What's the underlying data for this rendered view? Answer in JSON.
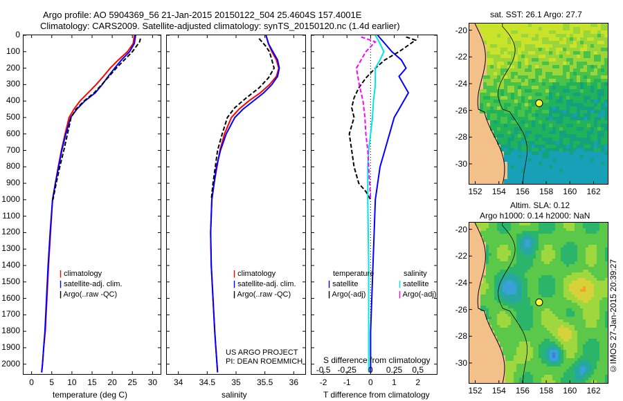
{
  "header": {
    "line1": "Argo profile: AO 5904369_56 21-Jan-2015 20150122_504 25.4604S 157.4001E",
    "line2": "Climatology: CARS2009. Satellite-adjusted climatology: synTS_20150120.nc (1.4d earlier)"
  },
  "colors": {
    "climatology": "#ff0000",
    "satellite": "#0000ff",
    "argo": "#000000",
    "salinity_sat": "#00e5e5",
    "salinity_argo": "#ff00ff"
  },
  "depth_axis": {
    "ticks": [
      "0",
      "100",
      "200",
      "300",
      "400",
      "500",
      "600",
      "700",
      "800",
      "900",
      "1000",
      "1100",
      "1200",
      "1300",
      "1400",
      "1500",
      "1600",
      "1700",
      "1800",
      "1900",
      "2000"
    ]
  },
  "chart_data": [
    {
      "type": "line",
      "name": "temperature-profile",
      "xlabel": "temperature (deg C)",
      "xticks": [
        "0",
        "5",
        "10",
        "15",
        "20",
        "25",
        "30"
      ],
      "xlim": [
        -2,
        32
      ],
      "ylim": [
        0,
        2060
      ],
      "series": [
        {
          "name": "climatology",
          "x": [
            25.5,
            25.2,
            23.8,
            21.5,
            19.5,
            17.8,
            16.0,
            14.0,
            12.0,
            10.5,
            9.3,
            8.3,
            7.4,
            6.6,
            5.9,
            5.2,
            4.7,
            4.2,
            3.8,
            3.4,
            3.0,
            2.7,
            2.5
          ],
          "depth": [
            0,
            50,
            100,
            150,
            200,
            250,
            300,
            350,
            400,
            450,
            500,
            600,
            700,
            800,
            900,
            1000,
            1200,
            1400,
            1600,
            1800,
            1900,
            2000,
            2050
          ]
        },
        {
          "name": "satellite-adj. clim.",
          "x": [
            25.8,
            25.5,
            24.3,
            22.3,
            20.6,
            19.0,
            17.5,
            15.8,
            13.2,
            11.2,
            9.7,
            8.5,
            7.5,
            6.7,
            5.9,
            5.2,
            4.6,
            4.1,
            3.7,
            3.3,
            3.0,
            2.7,
            2.5
          ],
          "depth": [
            0,
            50,
            100,
            150,
            200,
            250,
            300,
            350,
            400,
            450,
            500,
            600,
            700,
            800,
            900,
            1000,
            1200,
            1400,
            1600,
            1800,
            1900,
            2000,
            2050
          ]
        },
        {
          "name": "Argo(..raw -QC)",
          "x": [
            27.0,
            26.8,
            25.0,
            23.0,
            21.0,
            19.2,
            17.4,
            15.5,
            13.0,
            11.0,
            9.8,
            8.9,
            8.0,
            7.0,
            6.1,
            5.3
          ],
          "depth": [
            20,
            40,
            100,
            150,
            200,
            250,
            300,
            350,
            400,
            450,
            500,
            600,
            700,
            800,
            900,
            1000
          ]
        }
      ],
      "legend": [
        "climatology",
        "satellite-adj. clim.",
        "Argo(..raw -QC)"
      ]
    },
    {
      "type": "line",
      "name": "salinity-profile",
      "xlabel": "salinity",
      "xticks": [
        "34",
        "34.5",
        "35",
        "35.5",
        "36"
      ],
      "xlim": [
        33.8,
        36.2
      ],
      "ylim": [
        0,
        2060
      ],
      "series": [
        {
          "name": "climatology",
          "x": [
            35.52,
            35.56,
            35.62,
            35.7,
            35.74,
            35.7,
            35.58,
            35.42,
            35.22,
            35.05,
            34.92,
            34.8,
            34.72,
            34.67,
            34.62,
            34.58,
            34.56,
            34.57,
            34.6,
            34.63,
            34.65,
            34.67,
            34.68
          ],
          "depth": [
            0,
            50,
            100,
            150,
            200,
            250,
            300,
            350,
            400,
            450,
            500,
            600,
            700,
            800,
            900,
            1000,
            1200,
            1400,
            1600,
            1800,
            1900,
            2000,
            2050
          ]
        },
        {
          "name": "satellite-adj. clim.",
          "x": [
            35.52,
            35.56,
            35.64,
            35.72,
            35.75,
            35.72,
            35.62,
            35.48,
            35.3,
            35.12,
            34.98,
            34.83,
            34.73,
            34.66,
            34.62,
            34.58,
            34.56,
            34.57,
            34.6,
            34.63,
            34.65,
            34.67,
            34.68
          ],
          "depth": [
            0,
            50,
            100,
            150,
            200,
            250,
            300,
            350,
            400,
            450,
            500,
            600,
            700,
            800,
            900,
            1000,
            1200,
            1400,
            1600,
            1800,
            1900,
            2000,
            2050
          ]
        },
        {
          "name": "Argo(..raw -QC)",
          "x": [
            35.4,
            35.5,
            35.58,
            35.62,
            35.66,
            35.56,
            35.4,
            35.18,
            34.98,
            34.85,
            34.76,
            34.68,
            34.64,
            34.6,
            34.57
          ],
          "depth": [
            20,
            60,
            100,
            150,
            200,
            260,
            320,
            380,
            440,
            500,
            600,
            700,
            800,
            900,
            1000
          ]
        }
      ],
      "legend": [
        "climatology",
        "satellite-adj. clim.",
        "Argo(..raw -QC)"
      ],
      "annotation": [
        "US ARGO PROJECT",
        "PI: DEAN ROEMMICH"
      ]
    },
    {
      "type": "line",
      "name": "difference-profile",
      "xlabel": "T difference from climatology",
      "xlabel_top": "S difference from climatology",
      "xticks": [
        "-2",
        "-1",
        "0",
        "1",
        "2"
      ],
      "xticks_top": [
        "-0.5",
        "-0.25",
        "0",
        "0.25",
        "0.5"
      ],
      "xlim": [
        -2.5,
        2.8
      ],
      "ylim": [
        0,
        2060
      ],
      "series": [
        {
          "name": "temperature satellite",
          "x": [
            0.3,
            0.6,
            0.9,
            1.3,
            1.5,
            1.2,
            1.4,
            1.6,
            1.4,
            1.2,
            1.0,
            0.8,
            0.6,
            0.4,
            0.3,
            0.2,
            0.15,
            0.1,
            0.05,
            0.0,
            0.0
          ],
          "depth": [
            0,
            50,
            100,
            150,
            200,
            250,
            300,
            350,
            400,
            450,
            500,
            600,
            700,
            800,
            900,
            1000,
            1200,
            1400,
            1600,
            1800,
            2050
          ]
        },
        {
          "name": "temperature Argo(-adj)",
          "x": [
            1.5,
            1.9,
            1.2,
            0.6,
            0.2,
            -0.2,
            -0.5,
            -0.7,
            -0.8,
            -0.7,
            -0.9,
            -0.8,
            -0.7,
            -0.5,
            -0.2,
            0.0
          ],
          "depth": [
            10,
            30,
            100,
            150,
            200,
            260,
            320,
            380,
            440,
            500,
            600,
            700,
            800,
            900,
            950,
            1000
          ]
        },
        {
          "name": "salinity satellite",
          "x": [
            0.05,
            0.1,
            0.14,
            0.1,
            0.05,
            0.05,
            0.03,
            0.02,
            0.0,
            -0.02,
            -0.03,
            -0.03,
            -0.02,
            -0.02,
            -0.02
          ],
          "depth": [
            0,
            50,
            100,
            150,
            200,
            300,
            400,
            500,
            600,
            700,
            800,
            1000,
            1400,
            1800,
            2050
          ]
        },
        {
          "name": "salinity Argo(-adj)",
          "x": [
            -0.1,
            0.05,
            -0.05,
            -0.15,
            -0.12,
            -0.08,
            -0.06,
            -0.05,
            -0.03,
            -0.02,
            -0.01,
            0.0
          ],
          "depth": [
            10,
            40,
            100,
            200,
            300,
            400,
            500,
            600,
            700,
            800,
            900,
            1000
          ]
        }
      ],
      "legend_temperature": {
        "title": "temperature",
        "items": [
          "satellite",
          "Argo(-adj)"
        ]
      },
      "legend_salinity": {
        "title": "salinity",
        "items": [
          "satellite",
          "Argo(-adj)"
        ]
      }
    },
    {
      "type": "heatmap",
      "name": "sst-map",
      "title": "sat. SST: 26.1  Argo: 27.7",
      "xticks": [
        "152",
        "154",
        "156",
        "158",
        "160",
        "162"
      ],
      "yticks": [
        "-20",
        "-22",
        "-24",
        "-26",
        "-28",
        "-30"
      ],
      "xlim": [
        151.5,
        163.2
      ],
      "ylim": [
        -31.5,
        -19.5
      ],
      "float_position": {
        "lon": 157.4,
        "lat": -25.46
      }
    },
    {
      "type": "heatmap",
      "name": "sla-map",
      "title_line1": "Altim. SLA: 0.12",
      "title_line2": "Argo h1000: 0.14  h2000: NaN",
      "xticks": [
        "152",
        "154",
        "156",
        "158",
        "160",
        "162"
      ],
      "yticks": [
        "-20",
        "-22",
        "-24",
        "-26",
        "-28",
        "-30"
      ],
      "xlim": [
        151.5,
        163.2
      ],
      "ylim": [
        -31.5,
        -19.5
      ],
      "float_position": {
        "lon": 157.4,
        "lat": -25.46
      }
    }
  ],
  "credit": "©IMOS 27-Jan-2015 20:39:27"
}
